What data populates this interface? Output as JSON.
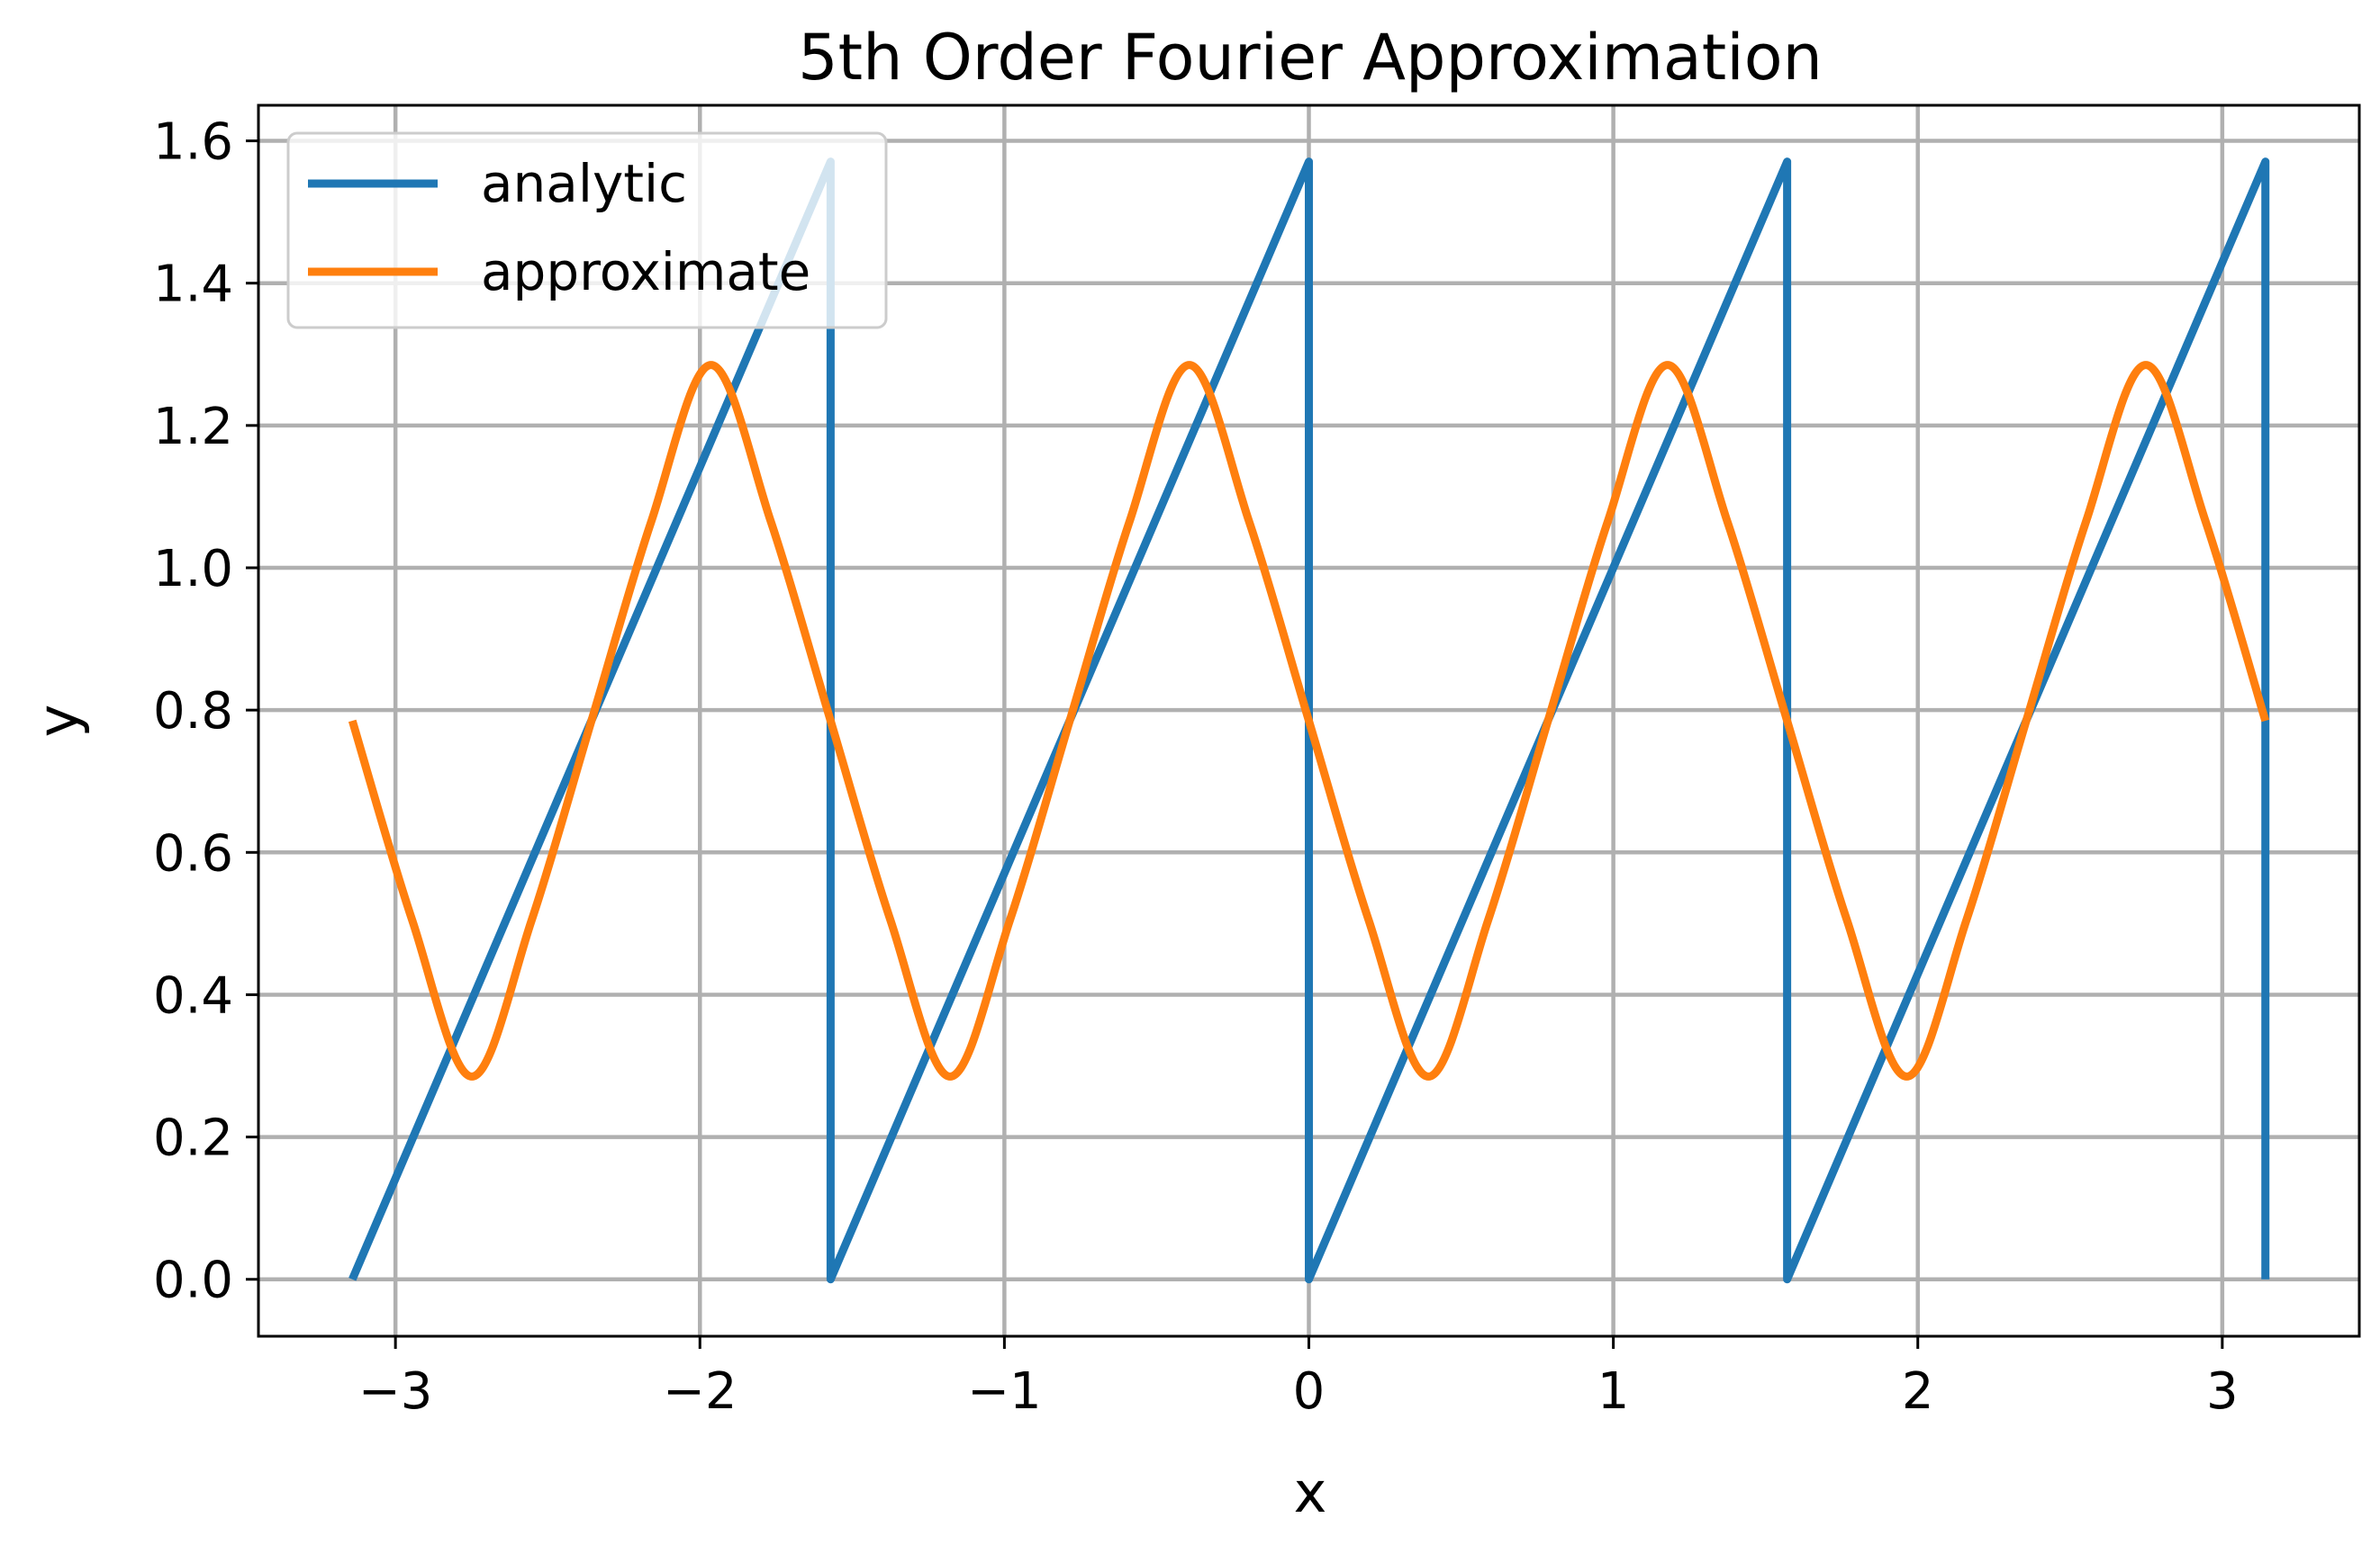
{
  "chart_data": {
    "type": "line",
    "title": "5th Order Fourier Approximation",
    "xlabel": "x",
    "ylabel": "y",
    "xlim": [
      -3.45,
      3.45
    ],
    "ylim": [
      -0.08,
      1.65
    ],
    "grid": true,
    "legend_position": "top-left",
    "x_ticks": [
      -3,
      -2,
      -1,
      0,
      1,
      2,
      3
    ],
    "x_tick_labels": [
      "−3",
      "−2",
      "−1",
      "0",
      "1",
      "2",
      "3"
    ],
    "y_ticks": [
      0.0,
      0.2,
      0.4,
      0.6,
      0.8,
      1.0,
      1.2,
      1.4,
      1.6
    ],
    "y_tick_labels": [
      "0.0",
      "0.2",
      "0.4",
      "0.6",
      "0.8",
      "1.0",
      "1.2",
      "1.4",
      "1.6"
    ],
    "series": [
      {
        "name": "analytic",
        "color": "#1f77b4",
        "points": [
          [
            -3.1416,
            0.0
          ],
          [
            -1.5708,
            1.5708
          ],
          [
            -1.5708,
            0.0
          ],
          [
            0.0,
            1.5708
          ],
          [
            0.0,
            0.0
          ],
          [
            1.5708,
            1.5708
          ],
          [
            1.5708,
            0.0
          ],
          [
            3.1416,
            1.5708
          ],
          [
            3.1416,
            0.0
          ]
        ]
      },
      {
        "name": "approximate",
        "color": "#ff7f0e",
        "points": [
          [
            -3.1416,
            0.785
          ],
          [
            -2.9452,
            0.505
          ],
          [
            -2.7489,
            0.285
          ],
          [
            -2.5525,
            0.505
          ],
          [
            -2.3562,
            0.785
          ],
          [
            -2.1598,
            1.065
          ],
          [
            -1.9635,
            1.285
          ],
          [
            -1.7671,
            1.065
          ],
          [
            -1.5708,
            0.785
          ],
          [
            -1.3744,
            0.505
          ],
          [
            -1.1781,
            0.285
          ],
          [
            -0.9817,
            0.505
          ],
          [
            -0.7854,
            0.785
          ],
          [
            -0.589,
            1.065
          ],
          [
            -0.3927,
            1.285
          ],
          [
            -0.1963,
            1.065
          ],
          [
            0.0,
            0.785
          ],
          [
            0.1963,
            0.505
          ],
          [
            0.3927,
            0.285
          ],
          [
            0.589,
            0.505
          ],
          [
            0.7854,
            0.785
          ],
          [
            0.9817,
            1.065
          ],
          [
            1.1781,
            1.285
          ],
          [
            1.3744,
            1.065
          ],
          [
            1.5708,
            0.785
          ],
          [
            1.7671,
            0.505
          ],
          [
            1.9635,
            0.285
          ],
          [
            2.1598,
            0.505
          ],
          [
            2.3562,
            0.785
          ],
          [
            2.5525,
            1.065
          ],
          [
            2.7489,
            1.285
          ],
          [
            2.9452,
            1.065
          ],
          [
            3.1416,
            0.785
          ]
        ]
      }
    ]
  }
}
